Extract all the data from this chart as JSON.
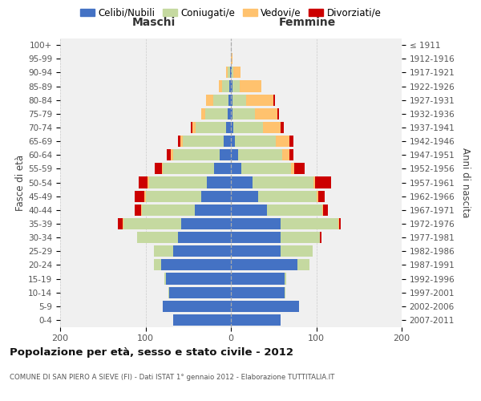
{
  "age_groups": [
    "0-4",
    "5-9",
    "10-14",
    "15-19",
    "20-24",
    "25-29",
    "30-34",
    "35-39",
    "40-44",
    "45-49",
    "50-54",
    "55-59",
    "60-64",
    "65-69",
    "70-74",
    "75-79",
    "80-84",
    "85-89",
    "90-94",
    "95-99",
    "100+"
  ],
  "birth_years": [
    "2007-2011",
    "2002-2006",
    "1997-2001",
    "1992-1996",
    "1987-1991",
    "1982-1986",
    "1977-1981",
    "1972-1976",
    "1967-1971",
    "1962-1966",
    "1957-1961",
    "1952-1956",
    "1947-1951",
    "1942-1946",
    "1937-1941",
    "1932-1936",
    "1927-1931",
    "1922-1926",
    "1917-1921",
    "1912-1916",
    "≤ 1911"
  ],
  "maschi_celibi": [
    68,
    80,
    72,
    76,
    82,
    68,
    62,
    58,
    42,
    35,
    28,
    20,
    13,
    8,
    6,
    4,
    3,
    2,
    1,
    0,
    0
  ],
  "maschi_coniugati": [
    0,
    0,
    1,
    2,
    8,
    22,
    48,
    68,
    62,
    65,
    68,
    60,
    55,
    48,
    35,
    26,
    18,
    8,
    3,
    0,
    0
  ],
  "maschi_vedovi": [
    0,
    0,
    0,
    0,
    0,
    0,
    0,
    1,
    1,
    1,
    2,
    1,
    2,
    3,
    4,
    5,
    8,
    4,
    2,
    0,
    0
  ],
  "maschi_divorziati": [
    0,
    0,
    0,
    0,
    0,
    0,
    0,
    5,
    8,
    12,
    10,
    8,
    5,
    3,
    2,
    0,
    0,
    0,
    0,
    0,
    0
  ],
  "femmine_nubili": [
    58,
    80,
    63,
    63,
    78,
    58,
    58,
    58,
    42,
    32,
    25,
    12,
    8,
    5,
    3,
    2,
    2,
    2,
    1,
    0,
    0
  ],
  "femmine_coniugate": [
    0,
    0,
    1,
    2,
    14,
    38,
    46,
    68,
    65,
    68,
    72,
    58,
    52,
    48,
    35,
    26,
    16,
    8,
    2,
    0,
    0
  ],
  "femmine_vedove": [
    0,
    0,
    0,
    0,
    0,
    0,
    0,
    1,
    1,
    2,
    2,
    4,
    9,
    16,
    20,
    26,
    32,
    26,
    8,
    2,
    0
  ],
  "femmine_divorziate": [
    0,
    0,
    0,
    0,
    0,
    0,
    2,
    2,
    6,
    8,
    18,
    12,
    4,
    4,
    4,
    2,
    2,
    0,
    0,
    0,
    0
  ],
  "colors": {
    "celibi": "#4472c4",
    "coniugati": "#c5d9a0",
    "vedovi": "#ffc26e",
    "divorziati": "#cc0000"
  },
  "legend_labels": [
    "Celibi/Nubili",
    "Coniugati/e",
    "Vedovi/e",
    "Divorziati/e"
  ],
  "title": "Popolazione per età, sesso e stato civile - 2012",
  "subtitle": "COMUNE DI SAN PIERO A SIEVE (FI) - Dati ISTAT 1° gennaio 2012 - Elaborazione TUTTITALIA.IT",
  "label_maschi": "Maschi",
  "label_femmine": "Femmine",
  "ylabel_left": "Fasce di età",
  "ylabel_right": "Anni di nascita",
  "xlim": 200,
  "bg_color": "#f0f0f0",
  "bar_height": 0.82
}
